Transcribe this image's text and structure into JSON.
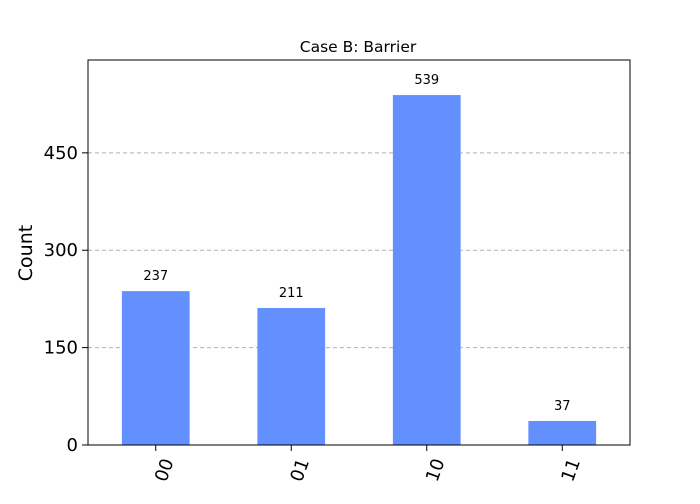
{
  "chart_data": {
    "type": "bar",
    "title": "Case B: Barrier",
    "xlabel": "",
    "ylabel": "Count",
    "categories": [
      "00",
      "01",
      "10",
      "11"
    ],
    "values": [
      237,
      211,
      539,
      37
    ],
    "data_labels": [
      "237",
      "211",
      "539",
      "37"
    ],
    "yticks": [
      0,
      150,
      300,
      450
    ],
    "ytick_labels": [
      "0",
      "150",
      "300",
      "450"
    ],
    "ylim": [
      0,
      593
    ],
    "grid": "y-dashed",
    "legend": "none",
    "bar_color": "#648fff",
    "x_tick_rotation_deg": 70
  }
}
